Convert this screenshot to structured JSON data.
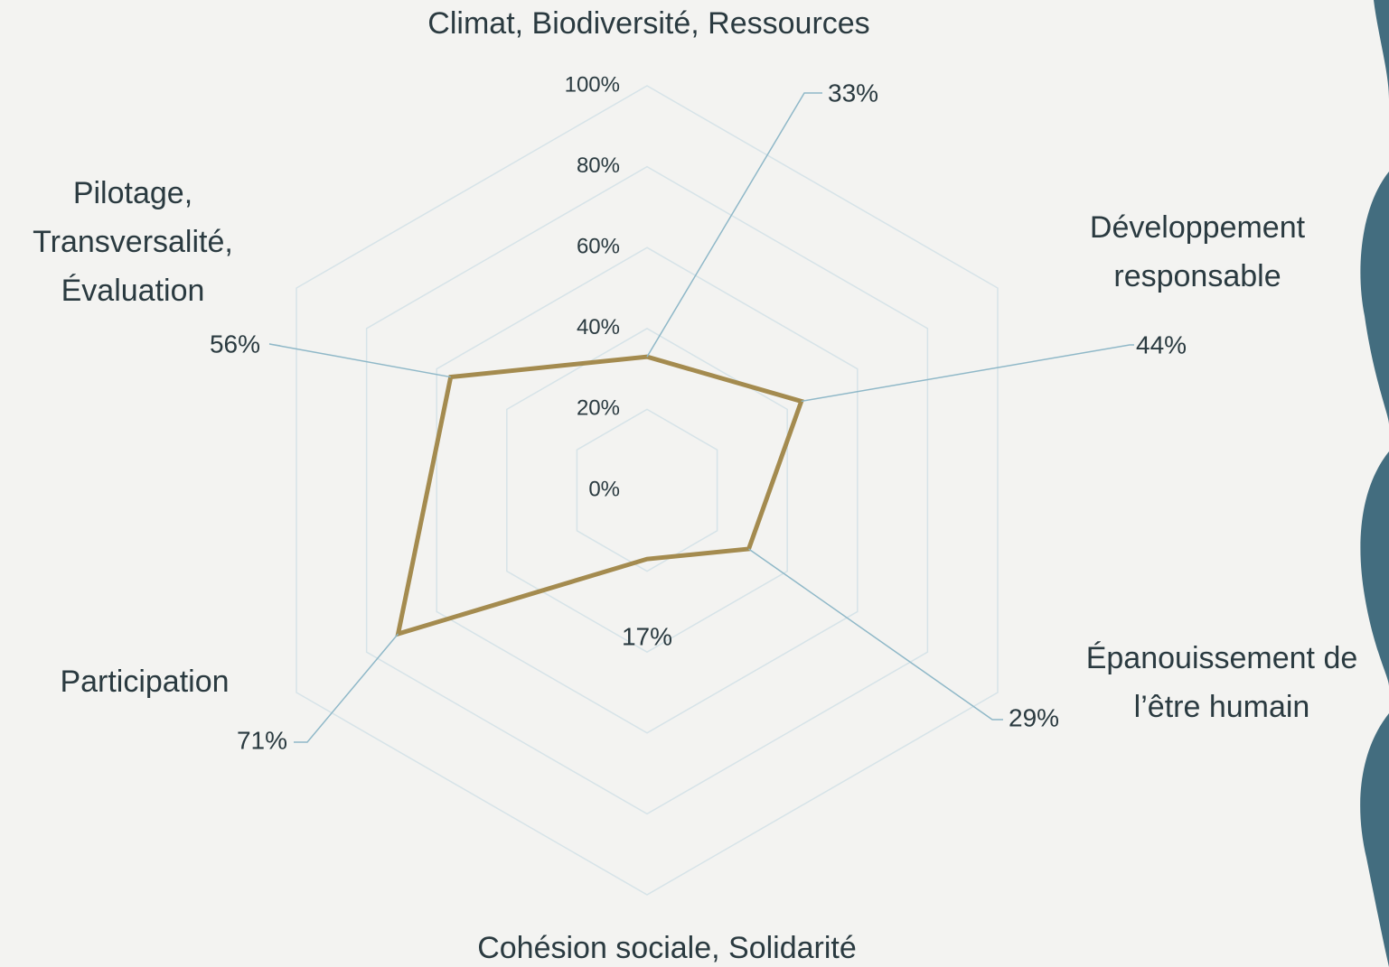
{
  "chart_data": {
    "type": "radar",
    "categories": [
      "Climat, Biodiversité, Ressources",
      "Développement responsable",
      "Épanouissement de l’être humain",
      "Cohésion sociale, Solidarité",
      "Participation",
      "Pilotage, Transversalité, Évaluation"
    ],
    "values": [
      33,
      44,
      29,
      17,
      71,
      56
    ],
    "value_labels": [
      "33%",
      "44%",
      "29%",
      "17%",
      "71%",
      "56%"
    ],
    "color": "#a48b4f",
    "ylim": [
      0,
      100
    ],
    "yticks": [
      {
        "value": 0,
        "label": "0%"
      },
      {
        "value": 20,
        "label": "20%"
      },
      {
        "value": 40,
        "label": "40%"
      },
      {
        "value": 60,
        "label": "60%"
      },
      {
        "value": 80,
        "label": "80%"
      },
      {
        "value": 100,
        "label": "100%"
      }
    ],
    "grid": true
  }
}
